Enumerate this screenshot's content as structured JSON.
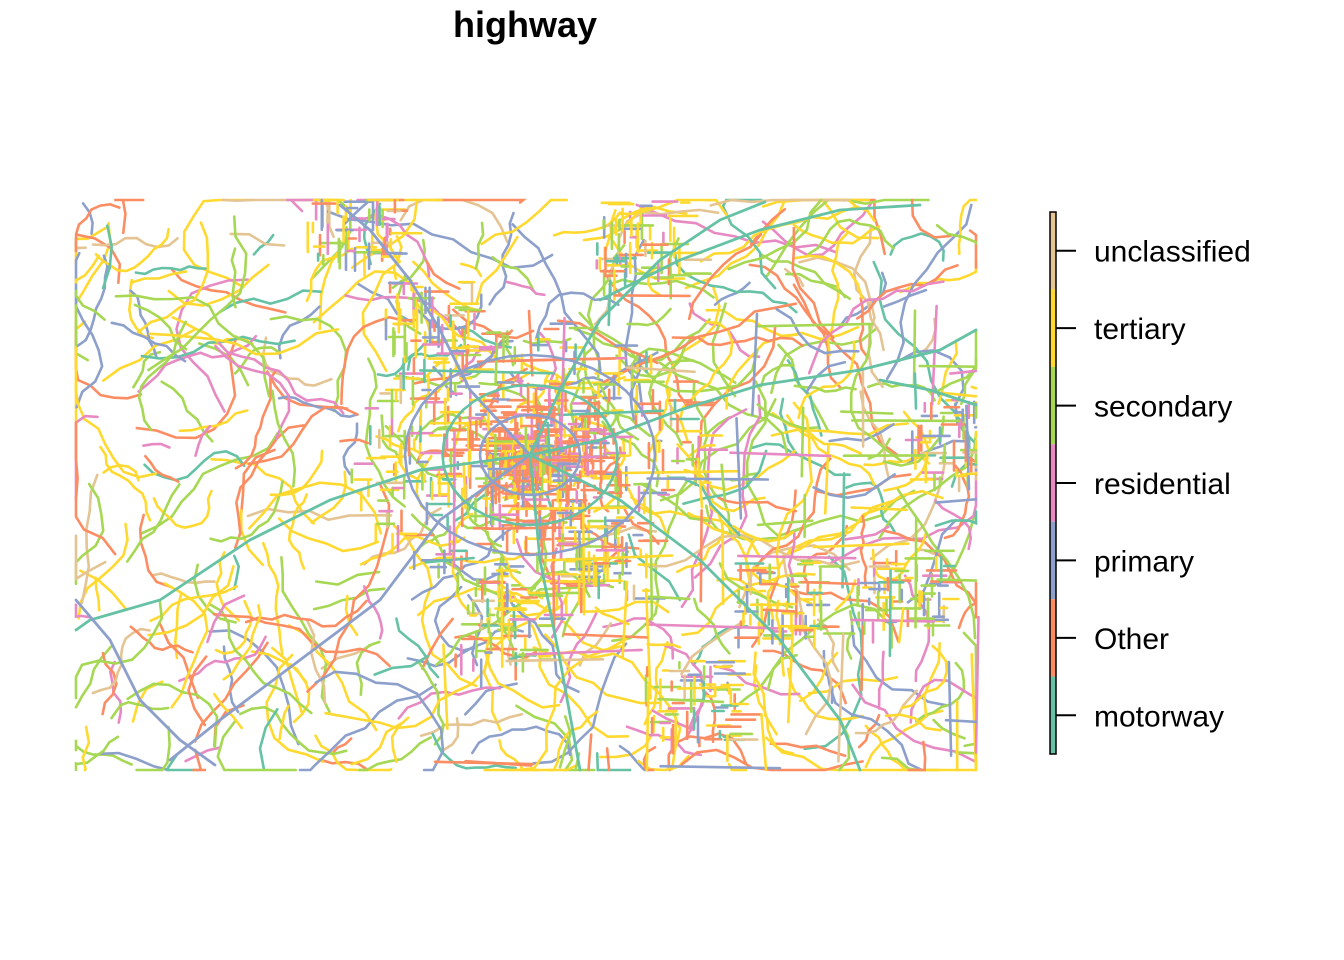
{
  "title": "highway",
  "legend": {
    "items": [
      {
        "label": "unclassified",
        "color": "#E5C494"
      },
      {
        "label": "tertiary",
        "color": "#FFD92F"
      },
      {
        "label": "secondary",
        "color": "#A6D854"
      },
      {
        "label": "residential",
        "color": "#E78AC3"
      },
      {
        "label": "primary",
        "color": "#8DA0CB"
      },
      {
        "label": "Other",
        "color": "#FC8D62"
      },
      {
        "label": "motorway",
        "color": "#66C2A5"
      }
    ]
  }
}
